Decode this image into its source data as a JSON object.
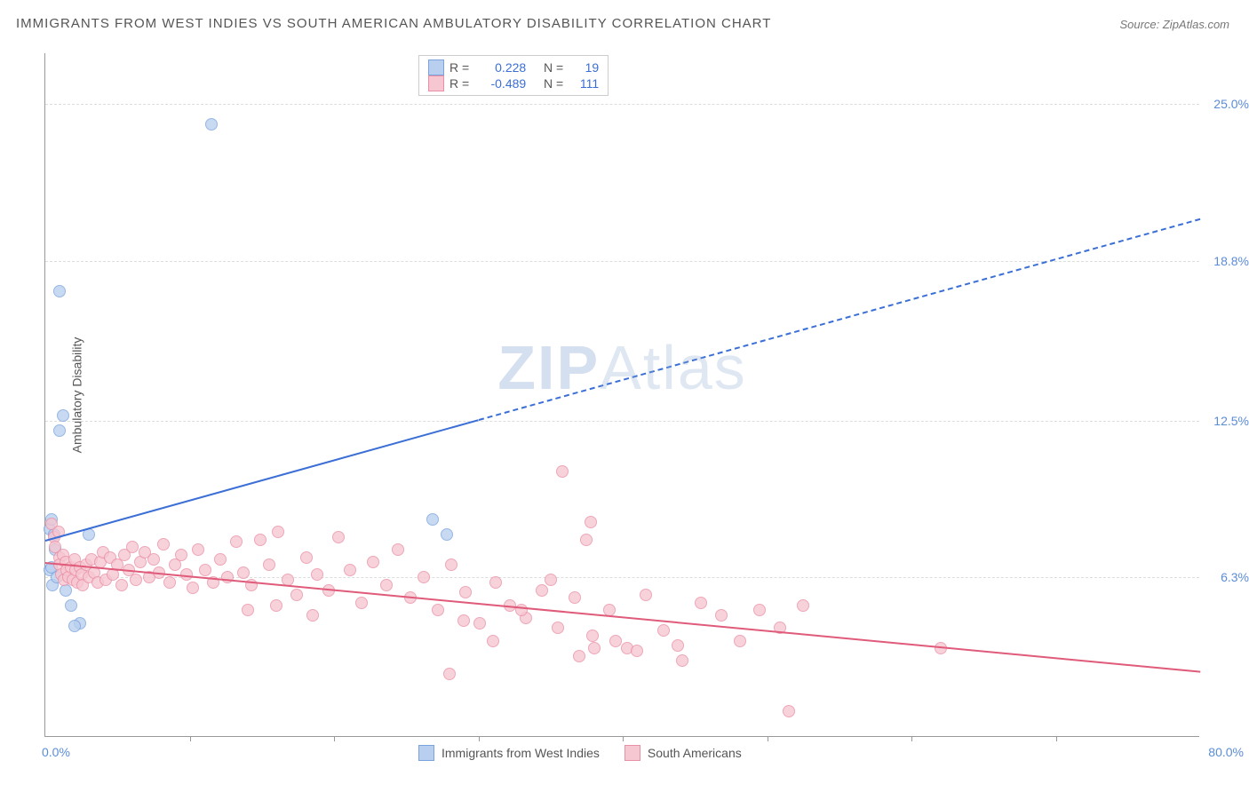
{
  "title": "IMMIGRANTS FROM WEST INDIES VS SOUTH AMERICAN AMBULATORY DISABILITY CORRELATION CHART",
  "source": "Source: ZipAtlas.com",
  "watermark": {
    "bold": "ZIP",
    "light": "Atlas"
  },
  "chart": {
    "type": "scatter",
    "ylabel": "Ambulatory Disability",
    "xlim": [
      0,
      80
    ],
    "ylim": [
      0,
      27
    ],
    "xticks_pct": [
      "0.0%",
      "80.0%"
    ],
    "yticks": [
      {
        "v": 6.3,
        "label": "6.3%"
      },
      {
        "v": 12.5,
        "label": "12.5%"
      },
      {
        "v": 18.8,
        "label": "18.8%"
      },
      {
        "v": 25.0,
        "label": "25.0%"
      }
    ],
    "xtick_marks": [
      10,
      20,
      30,
      40,
      50,
      60,
      70
    ],
    "background_color": "#ffffff",
    "grid_color": "#dddddd",
    "series": [
      {
        "name": "Immigrants from West Indies",
        "fill": "#b9cfef",
        "stroke": "#7aa3dd",
        "marker_radius": 7,
        "R": "0.228",
        "N": "19",
        "trend": {
          "x1": 0,
          "y1": 7.8,
          "x2": 80,
          "y2": 20.5,
          "solid_until_x": 30,
          "color": "#3b6fd6"
        },
        "points": [
          [
            1.0,
            17.6
          ],
          [
            11.5,
            24.2
          ],
          [
            1.2,
            12.7
          ],
          [
            1.0,
            12.1
          ],
          [
            0.3,
            8.2
          ],
          [
            0.4,
            8.6
          ],
          [
            0.6,
            8.0
          ],
          [
            0.7,
            7.4
          ],
          [
            0.3,
            6.6
          ],
          [
            0.4,
            6.7
          ],
          [
            0.5,
            6.0
          ],
          [
            1.4,
            5.8
          ],
          [
            1.8,
            5.2
          ],
          [
            2.4,
            4.5
          ],
          [
            2.0,
            4.4
          ],
          [
            3.0,
            8.0
          ],
          [
            26.8,
            8.6
          ],
          [
            27.8,
            8.0
          ],
          [
            0.8,
            6.3
          ]
        ]
      },
      {
        "name": "South Americans",
        "fill": "#f6c6d1",
        "stroke": "#ea8fa5",
        "marker_radius": 7,
        "R": "-0.489",
        "N": "111",
        "trend": {
          "x1": 0,
          "y1": 6.9,
          "x2": 80,
          "y2": 2.6,
          "solid_until_x": 80,
          "color": "#e05a7a"
        },
        "points": [
          [
            0.4,
            8.4
          ],
          [
            0.6,
            7.9
          ],
          [
            0.7,
            7.5
          ],
          [
            0.9,
            8.1
          ],
          [
            1.0,
            7.1
          ],
          [
            1.0,
            6.8
          ],
          [
            1.1,
            6.4
          ],
          [
            1.2,
            7.2
          ],
          [
            1.3,
            6.2
          ],
          [
            1.4,
            6.9
          ],
          [
            1.5,
            6.6
          ],
          [
            1.6,
            6.3
          ],
          [
            1.8,
            6.7
          ],
          [
            1.9,
            6.2
          ],
          [
            2.0,
            7.0
          ],
          [
            2.1,
            6.6
          ],
          [
            2.2,
            6.1
          ],
          [
            2.4,
            6.7
          ],
          [
            2.5,
            6.4
          ],
          [
            2.6,
            6.0
          ],
          [
            2.8,
            6.8
          ],
          [
            3.0,
            6.3
          ],
          [
            3.2,
            7.0
          ],
          [
            3.4,
            6.5
          ],
          [
            3.6,
            6.1
          ],
          [
            3.8,
            6.9
          ],
          [
            4.0,
            7.3
          ],
          [
            4.2,
            6.2
          ],
          [
            4.5,
            7.1
          ],
          [
            4.7,
            6.4
          ],
          [
            5.0,
            6.8
          ],
          [
            5.3,
            6.0
          ],
          [
            5.5,
            7.2
          ],
          [
            5.8,
            6.6
          ],
          [
            6.0,
            7.5
          ],
          [
            6.3,
            6.2
          ],
          [
            6.6,
            6.9
          ],
          [
            6.9,
            7.3
          ],
          [
            7.2,
            6.3
          ],
          [
            7.5,
            7.0
          ],
          [
            7.9,
            6.5
          ],
          [
            8.2,
            7.6
          ],
          [
            8.6,
            6.1
          ],
          [
            9.0,
            6.8
          ],
          [
            9.4,
            7.2
          ],
          [
            9.8,
            6.4
          ],
          [
            10.2,
            5.9
          ],
          [
            10.6,
            7.4
          ],
          [
            11.1,
            6.6
          ],
          [
            11.6,
            6.1
          ],
          [
            12.1,
            7.0
          ],
          [
            12.6,
            6.3
          ],
          [
            13.2,
            7.7
          ],
          [
            13.7,
            6.5
          ],
          [
            14.3,
            6.0
          ],
          [
            14.9,
            7.8
          ],
          [
            15.5,
            6.8
          ],
          [
            16.1,
            8.1
          ],
          [
            16.8,
            6.2
          ],
          [
            17.4,
            5.6
          ],
          [
            18.1,
            7.1
          ],
          [
            18.8,
            6.4
          ],
          [
            19.6,
            5.8
          ],
          [
            20.3,
            7.9
          ],
          [
            21.1,
            6.6
          ],
          [
            21.9,
            5.3
          ],
          [
            22.7,
            6.9
          ],
          [
            23.6,
            6.0
          ],
          [
            24.4,
            7.4
          ],
          [
            25.3,
            5.5
          ],
          [
            26.2,
            6.3
          ],
          [
            27.2,
            5.0
          ],
          [
            28.1,
            6.8
          ],
          [
            29.1,
            5.7
          ],
          [
            30.1,
            4.5
          ],
          [
            31.2,
            6.1
          ],
          [
            32.2,
            5.2
          ],
          [
            33.3,
            4.7
          ],
          [
            34.4,
            5.8
          ],
          [
            35.5,
            4.3
          ],
          [
            35.8,
            10.5
          ],
          [
            36.7,
            5.5
          ],
          [
            37.9,
            4.0
          ],
          [
            37.5,
            7.8
          ],
          [
            37.8,
            8.5
          ],
          [
            39.1,
            5.0
          ],
          [
            40.3,
            3.5
          ],
          [
            41.6,
            5.6
          ],
          [
            42.8,
            4.2
          ],
          [
            44.1,
            3.0
          ],
          [
            45.4,
            5.3
          ],
          [
            46.8,
            4.8
          ],
          [
            48.1,
            3.8
          ],
          [
            49.5,
            5.0
          ],
          [
            50.9,
            4.3
          ],
          [
            51.5,
            1.0
          ],
          [
            37.0,
            3.2
          ],
          [
            38.0,
            3.5
          ],
          [
            39.5,
            3.8
          ],
          [
            28.0,
            2.5
          ],
          [
            33.0,
            5.0
          ],
          [
            35.0,
            6.2
          ],
          [
            41.0,
            3.4
          ],
          [
            43.8,
            3.6
          ],
          [
            29.0,
            4.6
          ],
          [
            31.0,
            3.8
          ],
          [
            52.5,
            5.2
          ],
          [
            62.0,
            3.5
          ],
          [
            14.0,
            5.0
          ],
          [
            16.0,
            5.2
          ],
          [
            18.5,
            4.8
          ]
        ]
      }
    ]
  }
}
